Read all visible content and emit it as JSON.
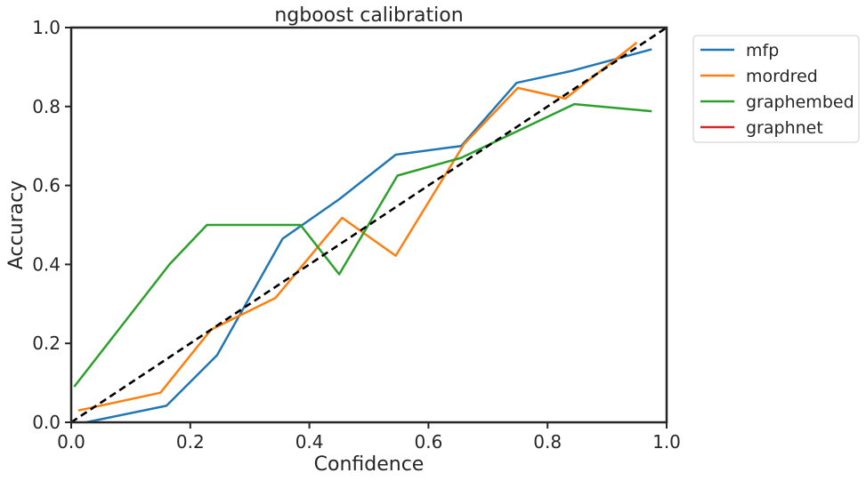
{
  "chart_data": {
    "type": "line",
    "title": "ngboost calibration",
    "xlabel": "Confidence",
    "ylabel": "Accuracy",
    "xlim": [
      0.0,
      1.0
    ],
    "ylim": [
      0.0,
      1.0
    ],
    "xticks": [
      "0.0",
      "0.2",
      "0.4",
      "0.6",
      "0.8",
      "1.0"
    ],
    "yticks": [
      "0.0",
      "0.2",
      "0.4",
      "0.6",
      "0.8",
      "1.0"
    ],
    "grid": false,
    "legend_position": "outside upper right",
    "series": [
      {
        "name": "mfp",
        "color": "#1f77b4",
        "x": [
          0.025,
          0.16,
          0.245,
          0.355,
          0.45,
          0.545,
          0.655,
          0.748,
          0.84,
          0.975
        ],
        "y": [
          0.0,
          0.042,
          0.17,
          0.465,
          0.565,
          0.678,
          0.7,
          0.86,
          0.89,
          0.945
        ]
      },
      {
        "name": "mordred",
        "color": "#ff7f0e",
        "x": [
          0.012,
          0.15,
          0.235,
          0.343,
          0.455,
          0.545,
          0.66,
          0.75,
          0.83,
          0.95
        ],
        "y": [
          0.03,
          0.075,
          0.235,
          0.315,
          0.518,
          0.422,
          0.705,
          0.847,
          0.82,
          0.962
        ]
      },
      {
        "name": "graphembed",
        "color": "#2ca02c",
        "x": [
          0.005,
          0.165,
          0.228,
          0.385,
          0.45,
          0.548,
          0.655,
          0.845,
          0.975
        ],
        "y": [
          0.09,
          0.4,
          0.5,
          0.5,
          0.375,
          0.625,
          0.67,
          0.806,
          0.788
        ]
      },
      {
        "name": "graphnet",
        "color": "#d62728",
        "x": [],
        "y": []
      }
    ],
    "reference_line": {
      "x": [
        0.0,
        1.0
      ],
      "y": [
        0.0,
        1.0
      ],
      "color": "#000000",
      "style": "dashed"
    }
  }
}
